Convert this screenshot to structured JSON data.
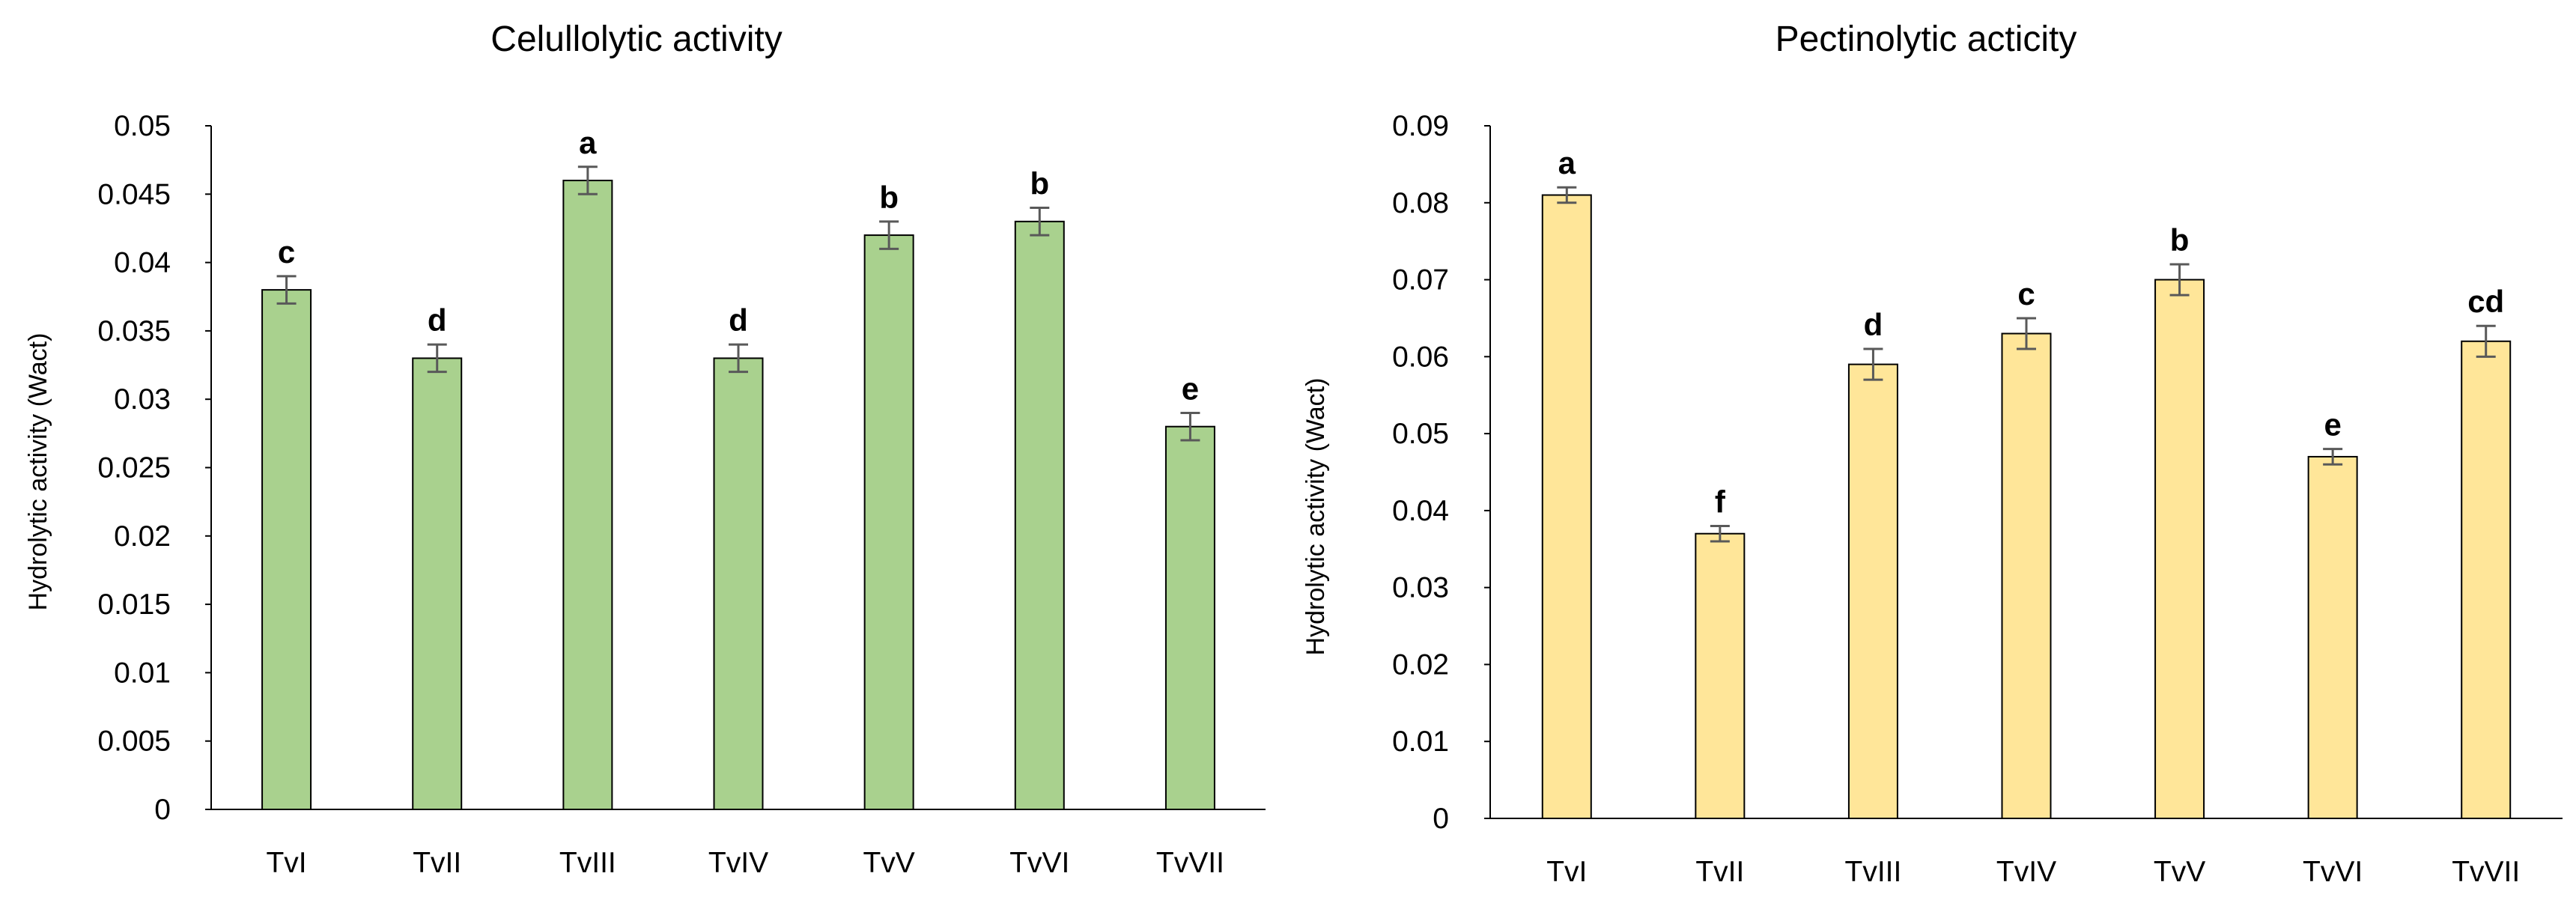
{
  "chart_data": [
    {
      "type": "bar",
      "title": "Celullolytic activity",
      "xlabel": "",
      "ylabel": "Hydrolytic  activity (Wact)",
      "categories": [
        "TvI",
        "TvII",
        "TvIII",
        "TvIV",
        "TvV",
        "TvVI",
        "TvVII"
      ],
      "values": [
        0.038,
        0.033,
        0.046,
        0.033,
        0.042,
        0.043,
        0.028
      ],
      "errors": [
        0.001,
        0.001,
        0.001,
        0.001,
        0.001,
        0.001,
        0.001
      ],
      "letters": [
        "c",
        "d",
        "a",
        "d",
        "b",
        "b",
        "e"
      ],
      "ylim": [
        0,
        0.05
      ],
      "yticks": [
        0,
        0.005,
        0.01,
        0.015,
        0.02,
        0.025,
        0.03,
        0.035,
        0.04,
        0.045,
        0.05
      ],
      "ytick_labels": [
        "0",
        "0.005",
        "0.01",
        "0.015",
        "0.02",
        "0.025",
        "0.03",
        "0.035",
        "0.04",
        "0.045",
        "0.05"
      ],
      "bar_color": "#a9d18e",
      "bar_edge": "#000000",
      "grid": false
    },
    {
      "type": "bar",
      "title": "Pectinolytic acticity",
      "xlabel": "",
      "ylabel": "Hydrolytic activity (Wact)",
      "categories": [
        "TvI",
        "TvII",
        "TvIII",
        "TvIV",
        "TvV",
        "TvVI",
        "TvVII"
      ],
      "values": [
        0.081,
        0.037,
        0.059,
        0.063,
        0.07,
        0.047,
        0.062
      ],
      "errors": [
        0.001,
        0.001,
        0.002,
        0.002,
        0.002,
        0.001,
        0.002
      ],
      "letters": [
        "a",
        "f",
        "d",
        "c",
        "b",
        "e",
        "cd"
      ],
      "ylim": [
        0,
        0.09
      ],
      "yticks": [
        0,
        0.01,
        0.02,
        0.03,
        0.04,
        0.05,
        0.06,
        0.07,
        0.08,
        0.09
      ],
      "ytick_labels": [
        "0",
        "0.01",
        "0.02",
        "0.03",
        "0.04",
        "0.05",
        "0.06",
        "0.07",
        "0.08",
        "0.09"
      ],
      "bar_color": "#ffe699",
      "bar_edge": "#000000",
      "grid": false
    }
  ]
}
